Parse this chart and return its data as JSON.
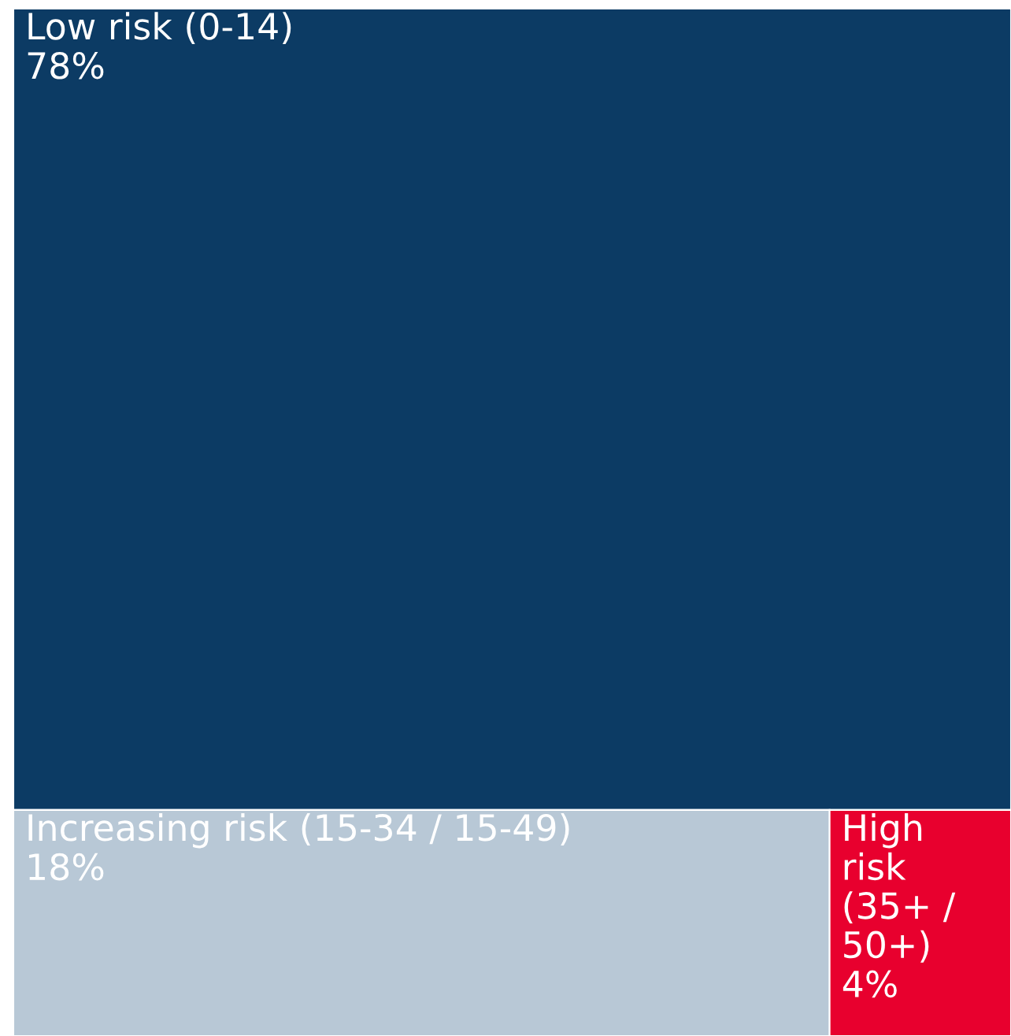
{
  "chart_data": {
    "type": "other",
    "categories": [
      "Low risk (0-14)",
      "Increasing risk (15-34 / 15-49)",
      "High risk (35+ / 50+)"
    ],
    "values": [
      78,
      18,
      4
    ],
    "value_labels": [
      "78%",
      "18%",
      "4%"
    ],
    "colors": [
      "#0c3b64",
      "#b8c8d6",
      "#e8002e"
    ]
  }
}
